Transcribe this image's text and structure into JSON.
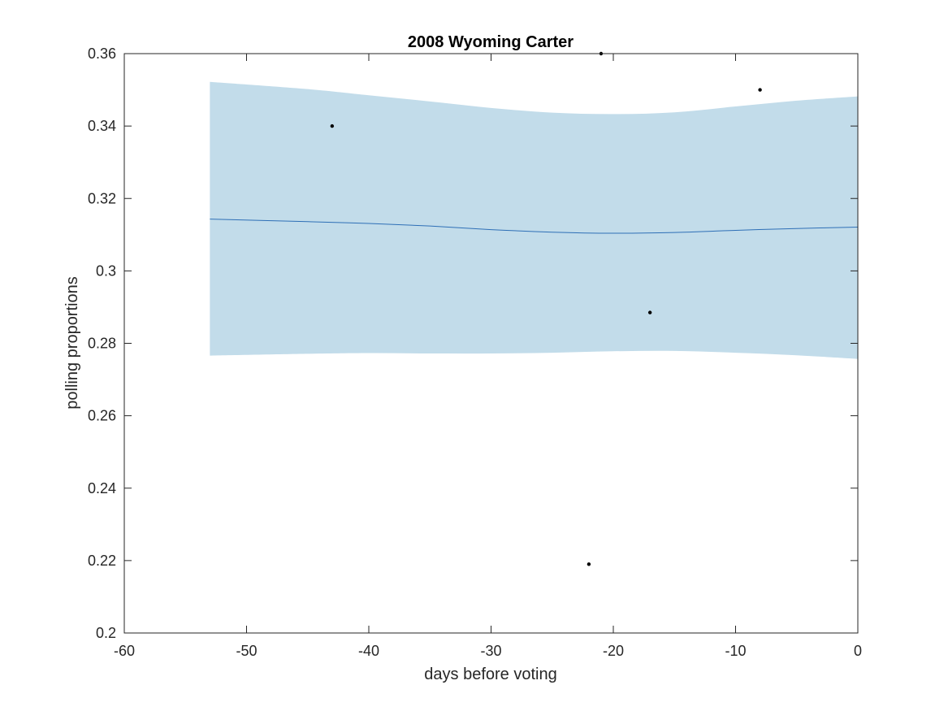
{
  "chart_data": {
    "type": "scatter",
    "title": "2008 Wyoming Carter",
    "xlabel": "days before voting",
    "ylabel": "polling proportions",
    "xlim": [
      -60,
      0
    ],
    "ylim": [
      0.2,
      0.36
    ],
    "xticks": [
      -60,
      -50,
      -40,
      -30,
      -20,
      -10,
      0
    ],
    "xtick_labels": [
      "-60",
      "-50",
      "-40",
      "-30",
      "-20",
      "-10",
      "0"
    ],
    "yticks": [
      0.2,
      0.22,
      0.24,
      0.26,
      0.28,
      0.3,
      0.32,
      0.34,
      0.36
    ],
    "ytick_labels": [
      "0.2",
      "0.22",
      "0.24",
      "0.26",
      "0.28",
      "0.3",
      "0.32",
      "0.34",
      "0.36"
    ],
    "grid": false,
    "points": [
      {
        "x": -43,
        "y": 0.34
      },
      {
        "x": -22,
        "y": 0.219
      },
      {
        "x": -21,
        "y": 0.36
      },
      {
        "x": -17,
        "y": 0.2885
      },
      {
        "x": -8,
        "y": 0.35
      }
    ],
    "trend": {
      "x": [
        -53,
        -45,
        -40,
        -35,
        -30,
        -25,
        -20,
        -15,
        -10,
        -5,
        0
      ],
      "mean": [
        0.3143,
        0.3136,
        0.3131,
        0.3124,
        0.3114,
        0.3107,
        0.3104,
        0.3106,
        0.3112,
        0.3117,
        0.3121
      ],
      "upper": [
        0.3522,
        0.3502,
        0.3485,
        0.3468,
        0.345,
        0.3437,
        0.3433,
        0.3438,
        0.3454,
        0.347,
        0.3482
      ],
      "lower": [
        0.2766,
        0.2771,
        0.2773,
        0.2772,
        0.2772,
        0.2774,
        0.2778,
        0.2779,
        0.2774,
        0.2767,
        0.2757
      ]
    },
    "colors": {
      "band": "#c2dcea",
      "line": "#2e6fb6",
      "points": "#000000",
      "axes": "#262626"
    }
  }
}
